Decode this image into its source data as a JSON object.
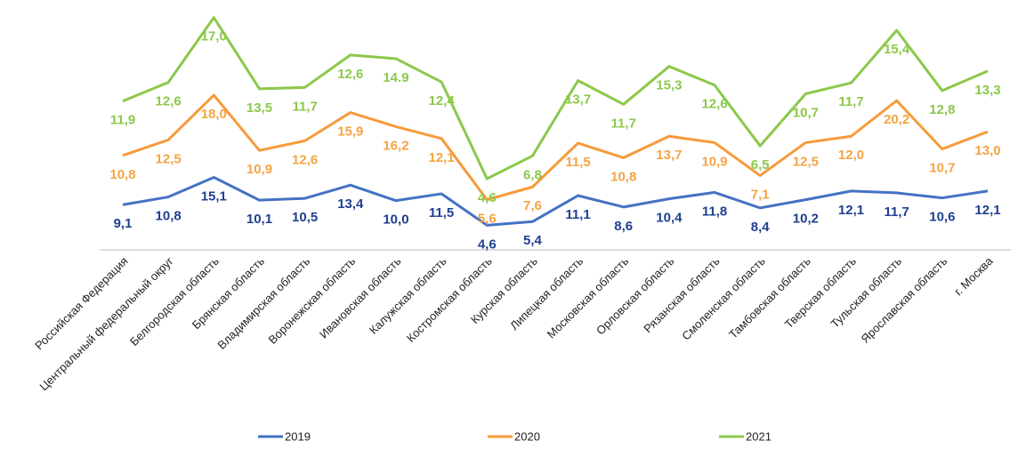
{
  "chart_data": {
    "type": "line",
    "stacked": true,
    "categories": [
      "Российская Федерация",
      "Центральный федеральный округ",
      "Белгородская область",
      "Брянская область",
      "Владимирская область",
      "Воронежская область",
      "Ивановская область",
      "Калужская область",
      "Костромская область",
      "Курская область",
      "Липецкая область",
      "Московская область",
      "Орловская область",
      "Рязанская область",
      "Смоленская область",
      "Тамбовская область",
      "Тверская область",
      "Тульская область",
      "Ярославская область",
      "г. Москва"
    ],
    "ylim": [
      0,
      52
    ],
    "legend": "bottom",
    "series": [
      {
        "name": "2019",
        "color": "#4472c4",
        "label_color": "#1f3f8f",
        "values": [
          9.1,
          10.8,
          15.1,
          10.1,
          10.5,
          13.4,
          10.0,
          11.5,
          4.6,
          5.4,
          11.1,
          8.6,
          10.4,
          11.8,
          8.4,
          10.2,
          12.1,
          11.7,
          10.6,
          12.1
        ],
        "value_labels": [
          "9,1",
          "10,8",
          "15,1",
          "10,1",
          "10,5",
          "13,4",
          "10,0",
          "11,5",
          "4,6",
          "5,4",
          "11,1",
          "8,6",
          "10,4",
          "11,8",
          "8,4",
          "10,2",
          "12,1",
          "11,7",
          "10,6",
          "12,1"
        ]
      },
      {
        "name": "2020",
        "color": "#f79a3a",
        "label_color": "#f5a443",
        "values": [
          10.8,
          12.5,
          18.0,
          10.9,
          12.6,
          15.9,
          16.2,
          12.1,
          5.6,
          7.6,
          11.5,
          10.8,
          13.7,
          10.9,
          7.1,
          12.5,
          12.0,
          20.2,
          10.7,
          13.0
        ],
        "value_labels": [
          "10,8",
          "12,5",
          "18,0",
          "10,9",
          "12,6",
          "15,9",
          "16,2",
          "12,1",
          "5,6",
          "7,6",
          "11,5",
          "10,8",
          "13,7",
          "10,9",
          "7,1",
          "12,5",
          "12,0",
          "20,2",
          "10,7",
          "13,0"
        ]
      },
      {
        "name": "2021",
        "color": "#8cc84b",
        "label_color": "#8cc84b",
        "values": [
          11.9,
          12.6,
          17.0,
          13.5,
          11.7,
          12.6,
          14.9,
          12.4,
          4.6,
          6.8,
          13.7,
          11.7,
          15.3,
          12.6,
          6.5,
          10.7,
          11.7,
          15.4,
          12.8,
          13.3
        ],
        "value_labels": [
          "11,9",
          "12,6",
          "17,0",
          "13,5",
          "11,7",
          "12,6",
          "14.9",
          "12,4",
          "4,6",
          "6,8",
          "13,7",
          "11,7",
          "15,3",
          "12,6",
          "6,5",
          "10,7",
          "11,7",
          "15,4",
          "12,8",
          "13,3"
        ]
      }
    ]
  }
}
